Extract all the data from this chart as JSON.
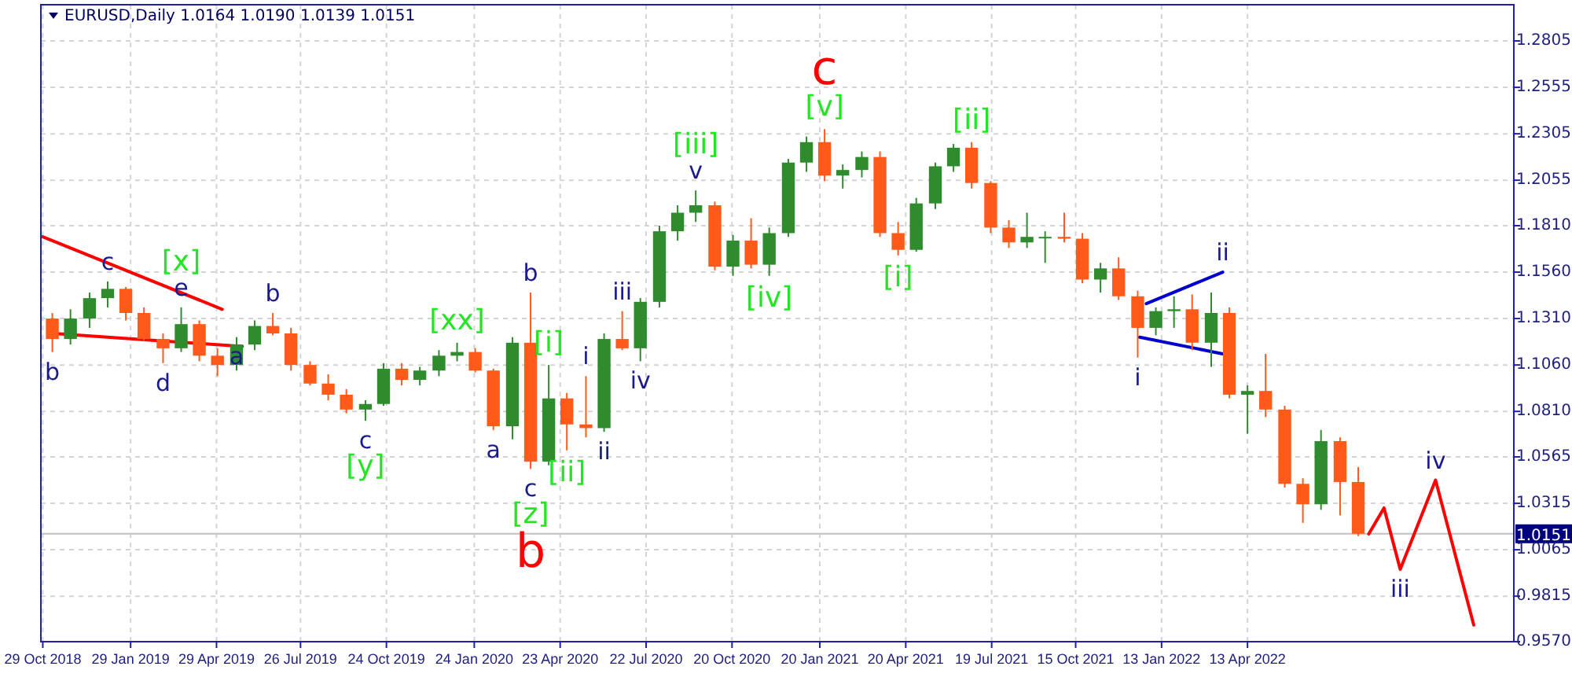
{
  "chart_data": {
    "type": "candlestick",
    "title": "EURUSD,Daily 1.0164 1.0190 1.0139 1.0151",
    "x": [
      "2018-11-08",
      "2018-11-27",
      "2018-12-17",
      "2019-01-05",
      "2019-01-24",
      "2019-02-12",
      "2019-03-04",
      "2019-03-23",
      "2019-04-11",
      "2019-04-30",
      "2019-05-20",
      "2019-06-08",
      "2019-06-27",
      "2019-07-16",
      "2019-08-05",
      "2019-08-24",
      "2019-09-12",
      "2019-10-02",
      "2019-10-21",
      "2019-11-09",
      "2019-11-28",
      "2019-12-18",
      "2020-01-06",
      "2020-01-25",
      "2020-02-13",
      "2020-03-04",
      "2020-03-23",
      "2020-04-11",
      "2020-04-30",
      "2020-05-20",
      "2020-06-08",
      "2020-06-27",
      "2020-07-16",
      "2020-08-05",
      "2020-08-24",
      "2020-09-12",
      "2020-10-02",
      "2020-10-21",
      "2020-11-09",
      "2020-11-28",
      "2020-12-18",
      "2021-01-06",
      "2021-01-25",
      "2021-02-13",
      "2021-03-05",
      "2021-03-24",
      "2021-04-12",
      "2021-05-01",
      "2021-05-21",
      "2021-06-09",
      "2021-06-28",
      "2021-07-18",
      "2021-08-06",
      "2021-08-25",
      "2021-09-13",
      "2021-10-03",
      "2021-10-22",
      "2021-11-10",
      "2021-11-29",
      "2021-12-19",
      "2022-01-07",
      "2022-01-26",
      "2022-02-14",
      "2022-03-06",
      "2022-03-25",
      "2022-04-13",
      "2022-05-02",
      "2022-05-22",
      "2022-06-10",
      "2022-06-29",
      "2022-07-19",
      "2022-08-07"
    ],
    "ohlc": [
      [
        1.131,
        1.134,
        1.113,
        1.12
      ],
      [
        1.12,
        1.136,
        1.117,
        1.131
      ],
      [
        1.131,
        1.145,
        1.126,
        1.142
      ],
      [
        1.142,
        1.151,
        1.137,
        1.147
      ],
      [
        1.147,
        1.148,
        1.13,
        1.134
      ],
      [
        1.134,
        1.137,
        1.119,
        1.12
      ],
      [
        1.12,
        1.123,
        1.107,
        1.115
      ],
      [
        1.115,
        1.137,
        1.113,
        1.128
      ],
      [
        1.128,
        1.13,
        1.108,
        1.111
      ],
      [
        1.111,
        1.115,
        1.1,
        1.106
      ],
      [
        1.106,
        1.121,
        1.103,
        1.117
      ],
      [
        1.117,
        1.13,
        1.114,
        1.127
      ],
      [
        1.127,
        1.134,
        1.122,
        1.123
      ],
      [
        1.123,
        1.126,
        1.103,
        1.106
      ],
      [
        1.106,
        1.108,
        1.095,
        1.096
      ],
      [
        1.096,
        1.101,
        1.087,
        1.09
      ],
      [
        1.09,
        1.093,
        1.08,
        1.082
      ],
      [
        1.082,
        1.087,
        1.076,
        1.085
      ],
      [
        1.085,
        1.107,
        1.084,
        1.104
      ],
      [
        1.104,
        1.107,
        1.095,
        1.098
      ],
      [
        1.098,
        1.105,
        1.095,
        1.103
      ],
      [
        1.103,
        1.114,
        1.1,
        1.111
      ],
      [
        1.111,
        1.118,
        1.108,
        1.113
      ],
      [
        1.113,
        1.115,
        1.102,
        1.103
      ],
      [
        1.103,
        1.104,
        1.071,
        1.073
      ],
      [
        1.073,
        1.121,
        1.066,
        1.118
      ],
      [
        1.118,
        1.145,
        1.05,
        1.054
      ],
      [
        1.054,
        1.106,
        1.052,
        1.088
      ],
      [
        1.088,
        1.091,
        1.06,
        1.074
      ],
      [
        1.074,
        1.1,
        1.067,
        1.072
      ],
      [
        1.072,
        1.123,
        1.07,
        1.12
      ],
      [
        1.12,
        1.135,
        1.114,
        1.115
      ],
      [
        1.115,
        1.142,
        1.108,
        1.14
      ],
      [
        1.14,
        1.181,
        1.137,
        1.178
      ],
      [
        1.178,
        1.192,
        1.173,
        1.188
      ],
      [
        1.188,
        1.2,
        1.183,
        1.192
      ],
      [
        1.192,
        1.194,
        1.157,
        1.159
      ],
      [
        1.159,
        1.176,
        1.154,
        1.173
      ],
      [
        1.173,
        1.185,
        1.158,
        1.16
      ],
      [
        1.16,
        1.18,
        1.154,
        1.177
      ],
      [
        1.177,
        1.217,
        1.175,
        1.215
      ],
      [
        1.215,
        1.229,
        1.21,
        1.226
      ],
      [
        1.226,
        1.233,
        1.205,
        1.208
      ],
      [
        1.208,
        1.214,
        1.201,
        1.211
      ],
      [
        1.211,
        1.221,
        1.207,
        1.218
      ],
      [
        1.218,
        1.221,
        1.175,
        1.177
      ],
      [
        1.177,
        1.183,
        1.165,
        1.168
      ],
      [
        1.168,
        1.196,
        1.167,
        1.193
      ],
      [
        1.193,
        1.215,
        1.19,
        1.213
      ],
      [
        1.213,
        1.225,
        1.21,
        1.223
      ],
      [
        1.223,
        1.226,
        1.201,
        1.204
      ],
      [
        1.204,
        1.205,
        1.177,
        1.18
      ],
      [
        1.18,
        1.184,
        1.169,
        1.172
      ],
      [
        1.172,
        1.188,
        1.169,
        1.175
      ],
      [
        1.175,
        1.178,
        1.161,
        1.175
      ],
      [
        1.175,
        1.188,
        1.172,
        1.174
      ],
      [
        1.174,
        1.177,
        1.15,
        1.152
      ],
      [
        1.152,
        1.161,
        1.145,
        1.158
      ],
      [
        1.158,
        1.164,
        1.141,
        1.143
      ],
      [
        1.143,
        1.146,
        1.11,
        1.126
      ],
      [
        1.126,
        1.137,
        1.122,
        1.135
      ],
      [
        1.135,
        1.143,
        1.126,
        1.136
      ],
      [
        1.136,
        1.144,
        1.114,
        1.118
      ],
      [
        1.118,
        1.145,
        1.105,
        1.134
      ],
      [
        1.134,
        1.137,
        1.088,
        1.09
      ],
      [
        1.09,
        1.095,
        1.069,
        1.092
      ],
      [
        1.092,
        1.112,
        1.078,
        1.082
      ],
      [
        1.082,
        1.084,
        1.04,
        1.042
      ],
      [
        1.042,
        1.045,
        1.021,
        1.031
      ],
      [
        1.031,
        1.071,
        1.028,
        1.065
      ],
      [
        1.065,
        1.067,
        1.025,
        1.043
      ],
      [
        1.043,
        1.051,
        1.0139,
        1.0151
      ]
    ],
    "series": [
      {
        "type": "line",
        "color": "#ff0000",
        "x": [
          "2018-10-29",
          "2019-05-05"
        ],
        "values": [
          1.175,
          1.136
        ]
      },
      {
        "type": "line",
        "color": "#ff0000",
        "x": [
          "2018-11-09",
          "2019-05-26"
        ],
        "values": [
          1.123,
          1.116
        ]
      },
      {
        "type": "line",
        "color": "#0000cd",
        "x": [
          "2021-12-28",
          "2022-03-18"
        ],
        "values": [
          1.139,
          1.156
        ]
      },
      {
        "type": "line",
        "color": "#0000cd",
        "x": [
          "2021-12-21",
          "2022-03-18"
        ],
        "values": [
          1.121,
          1.112
        ]
      },
      {
        "type": "line",
        "color": "#ff0000",
        "x": [
          "2022-08-18",
          "2022-09-03",
          "2022-09-20",
          "2022-10-27",
          "2022-12-06"
        ],
        "values": [
          1.015,
          1.029,
          0.996,
          1.044,
          0.966
        ]
      }
    ],
    "ref_lines": [
      {
        "axis": "y",
        "value": 1.0151,
        "label": "1.0151",
        "color": "#c0c0c0"
      }
    ],
    "annotations": [
      {
        "text": "c",
        "x": "2021-01-25",
        "y": 1.233
      },
      {
        "text": "b",
        "x": "2020-03-23",
        "y": 1.05
      },
      {
        "text": "c",
        "x": "2019-01-05",
        "y": 1.151
      },
      {
        "text": "e",
        "x": "2019-03-23",
        "y": 1.137
      },
      {
        "text": "b",
        "x": "2018-11-08",
        "y": 1.113
      },
      {
        "text": "d",
        "x": "2019-03-04",
        "y": 1.107
      },
      {
        "text": "a",
        "x": "2019-05-20",
        "y": 1.1
      },
      {
        "text": "b",
        "x": "2019-06-27",
        "y": 1.134
      },
      {
        "text": "c",
        "x": "2019-10-02",
        "y": 1.076
      },
      {
        "text": "a",
        "x": "2020-02-13",
        "y": 1.071
      },
      {
        "text": "b",
        "x": "2020-03-23",
        "y": 1.145
      },
      {
        "text": "c",
        "x": "2020-03-23",
        "y": 1.05
      },
      {
        "text": "i",
        "x": "2020-05-20",
        "y": 1.1
      },
      {
        "text": "ii",
        "x": "2020-06-08",
        "y": 1.07
      },
      {
        "text": "iii",
        "x": "2020-06-27",
        "y": 1.135
      },
      {
        "text": "iv",
        "x": "2020-07-16",
        "y": 1.108
      },
      {
        "text": "v",
        "x": "2020-09-12",
        "y": 1.2
      },
      {
        "text": "i",
        "x": "2021-12-19",
        "y": 1.11
      },
      {
        "text": "ii",
        "x": "2022-03-18",
        "y": 1.156
      },
      {
        "text": "iii",
        "x": "2022-09-20",
        "y": 0.996
      },
      {
        "text": "iv",
        "x": "2022-10-27",
        "y": 1.044
      },
      {
        "text": "[x]",
        "x": "2019-03-23",
        "y": 1.137
      },
      {
        "text": "[y]",
        "x": "2019-10-02",
        "y": 1.076
      },
      {
        "text": "[xx]",
        "x": "2020-01-06",
        "y": 1.118
      },
      {
        "text": "[z]",
        "x": "2020-03-23",
        "y": 1.05
      },
      {
        "text": "[i]",
        "x": "2020-04-11",
        "y": 1.106
      },
      {
        "text": "[ii]",
        "x": "2020-04-30",
        "y": 1.06
      },
      {
        "text": "[iii]",
        "x": "2020-09-12",
        "y": 1.2
      },
      {
        "text": "[iv]",
        "x": "2020-11-28",
        "y": 1.154
      },
      {
        "text": "[v]",
        "x": "2021-01-25",
        "y": 1.233
      },
      {
        "text": "[i]",
        "x": "2021-04-12",
        "y": 1.165
      },
      {
        "text": "[ii]",
        "x": "2021-06-28",
        "y": 1.226
      }
    ],
    "xlim": [
      "2018-10-27",
      "2023-01-17"
    ],
    "ylim": [
      0.957,
      1.3
    ],
    "xticks": [
      {
        "value": "2018-10-29",
        "label": "29 Oct 2018"
      },
      {
        "value": "2019-01-29",
        "label": "29 Jan 2019"
      },
      {
        "value": "2019-04-29",
        "label": "29 Apr 2019"
      },
      {
        "value": "2019-07-26",
        "label": "26 Jul 2019"
      },
      {
        "value": "2019-10-24",
        "label": "24 Oct 2019"
      },
      {
        "value": "2020-01-24",
        "label": "24 Jan 2020"
      },
      {
        "value": "2020-04-23",
        "label": "23 Apr 2020"
      },
      {
        "value": "2020-07-22",
        "label": "22 Jul 2020"
      },
      {
        "value": "2020-10-20",
        "label": "20 Oct 2020"
      },
      {
        "value": "2021-01-20",
        "label": "20 Jan 2021"
      },
      {
        "value": "2021-04-20",
        "label": "20 Apr 2021"
      },
      {
        "value": "2021-07-19",
        "label": "19 Jul 2021"
      },
      {
        "value": "2021-10-15",
        "label": "15 Oct 2021"
      },
      {
        "value": "2022-01-13",
        "label": "13 Jan 2022"
      },
      {
        "value": "2022-04-13",
        "label": "13 Apr 2022"
      }
    ],
    "yticks": [
      {
        "value": 0.957,
        "label": "0.9570"
      },
      {
        "value": 0.9815,
        "label": "0.9815"
      },
      {
        "value": 1.0065,
        "label": "1.0065"
      },
      {
        "value": 1.0315,
        "label": "1.0315"
      },
      {
        "value": 1.0565,
        "label": "1.0565"
      },
      {
        "value": 1.081,
        "label": "1.0810"
      },
      {
        "value": 1.106,
        "label": "1.1060"
      },
      {
        "value": 1.131,
        "label": "1.1310"
      },
      {
        "value": 1.156,
        "label": "1.1560"
      },
      {
        "value": 1.181,
        "label": "1.1810"
      },
      {
        "value": 1.2055,
        "label": "1.2055"
      },
      {
        "value": 1.2305,
        "label": "1.2305"
      },
      {
        "value": 1.2555,
        "label": "1.2555"
      },
      {
        "value": 1.2805,
        "label": "1.2805"
      }
    ],
    "grid": true
  }
}
